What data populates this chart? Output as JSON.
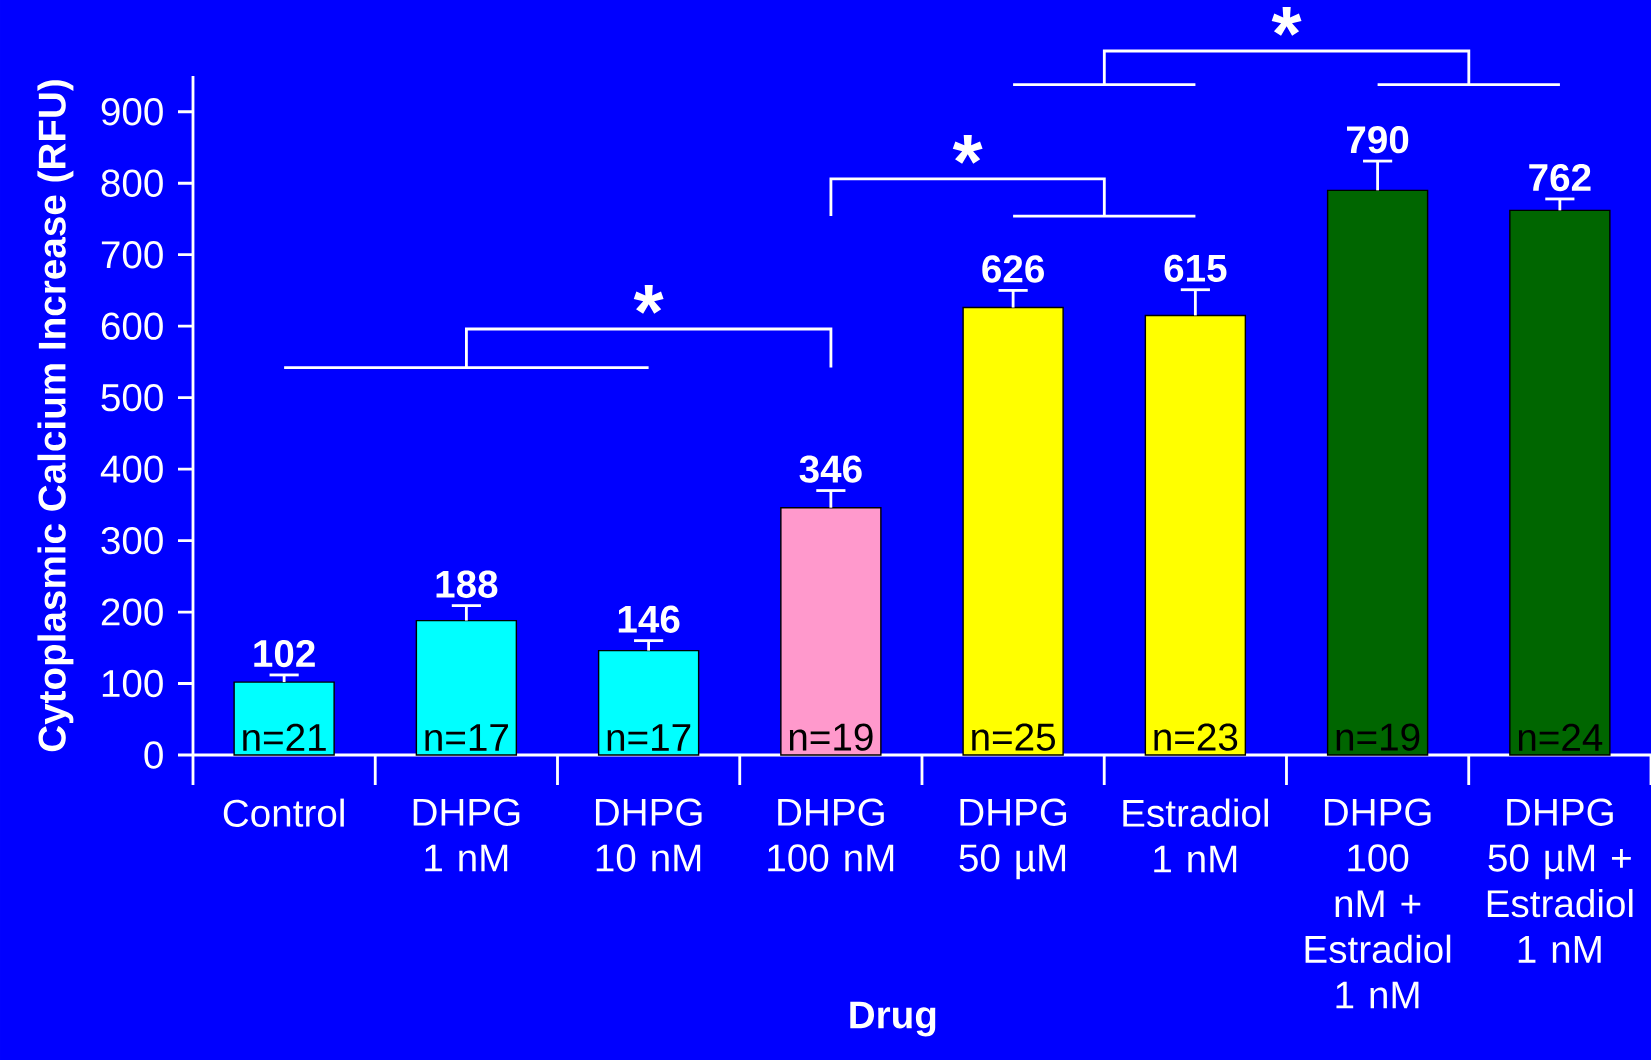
{
  "chart_data": {
    "type": "bar",
    "xlabel": "Drug",
    "ylabel": "Cytoplasmic Calcium Increase (RFU)",
    "categories": [
      "Control",
      "DHPG 1 nM",
      "DHPG 10 nM",
      "DHPG 100 nM",
      "DHPG 50 µM",
      "Estradiol 1 nM",
      "DHPG 100 nM + Estradiol 1 nM",
      "DHPG 50 µM + Estradiol 1 nM"
    ],
    "values": [
      102,
      188,
      146,
      346,
      626,
      615,
      790,
      762
    ],
    "colors": [
      "#00ffff",
      "#00ffff",
      "#00ffff",
      "#ff99cc",
      "#ffff00",
      "#ffff00",
      "#006600",
      "#006600"
    ],
    "errors": [
      [
        102,
        112
      ],
      [
        188,
        209
      ],
      [
        146,
        160
      ],
      [
        346,
        370
      ],
      [
        626,
        650
      ],
      [
        615,
        651
      ],
      [
        790,
        831
      ],
      [
        762,
        778
      ]
    ],
    "data_labels": true,
    "ylim": [
      0,
      950
    ],
    "yticks": [
      0,
      100,
      200,
      300,
      400,
      500,
      600,
      700,
      800,
      900
    ],
    "grid": false,
    "annotations": [
      "n=21",
      "n=17",
      "n=17",
      "n=19",
      "n=25",
      "n=23",
      "n=19",
      "n=24",
      "*",
      "*",
      "*"
    ]
  }
}
